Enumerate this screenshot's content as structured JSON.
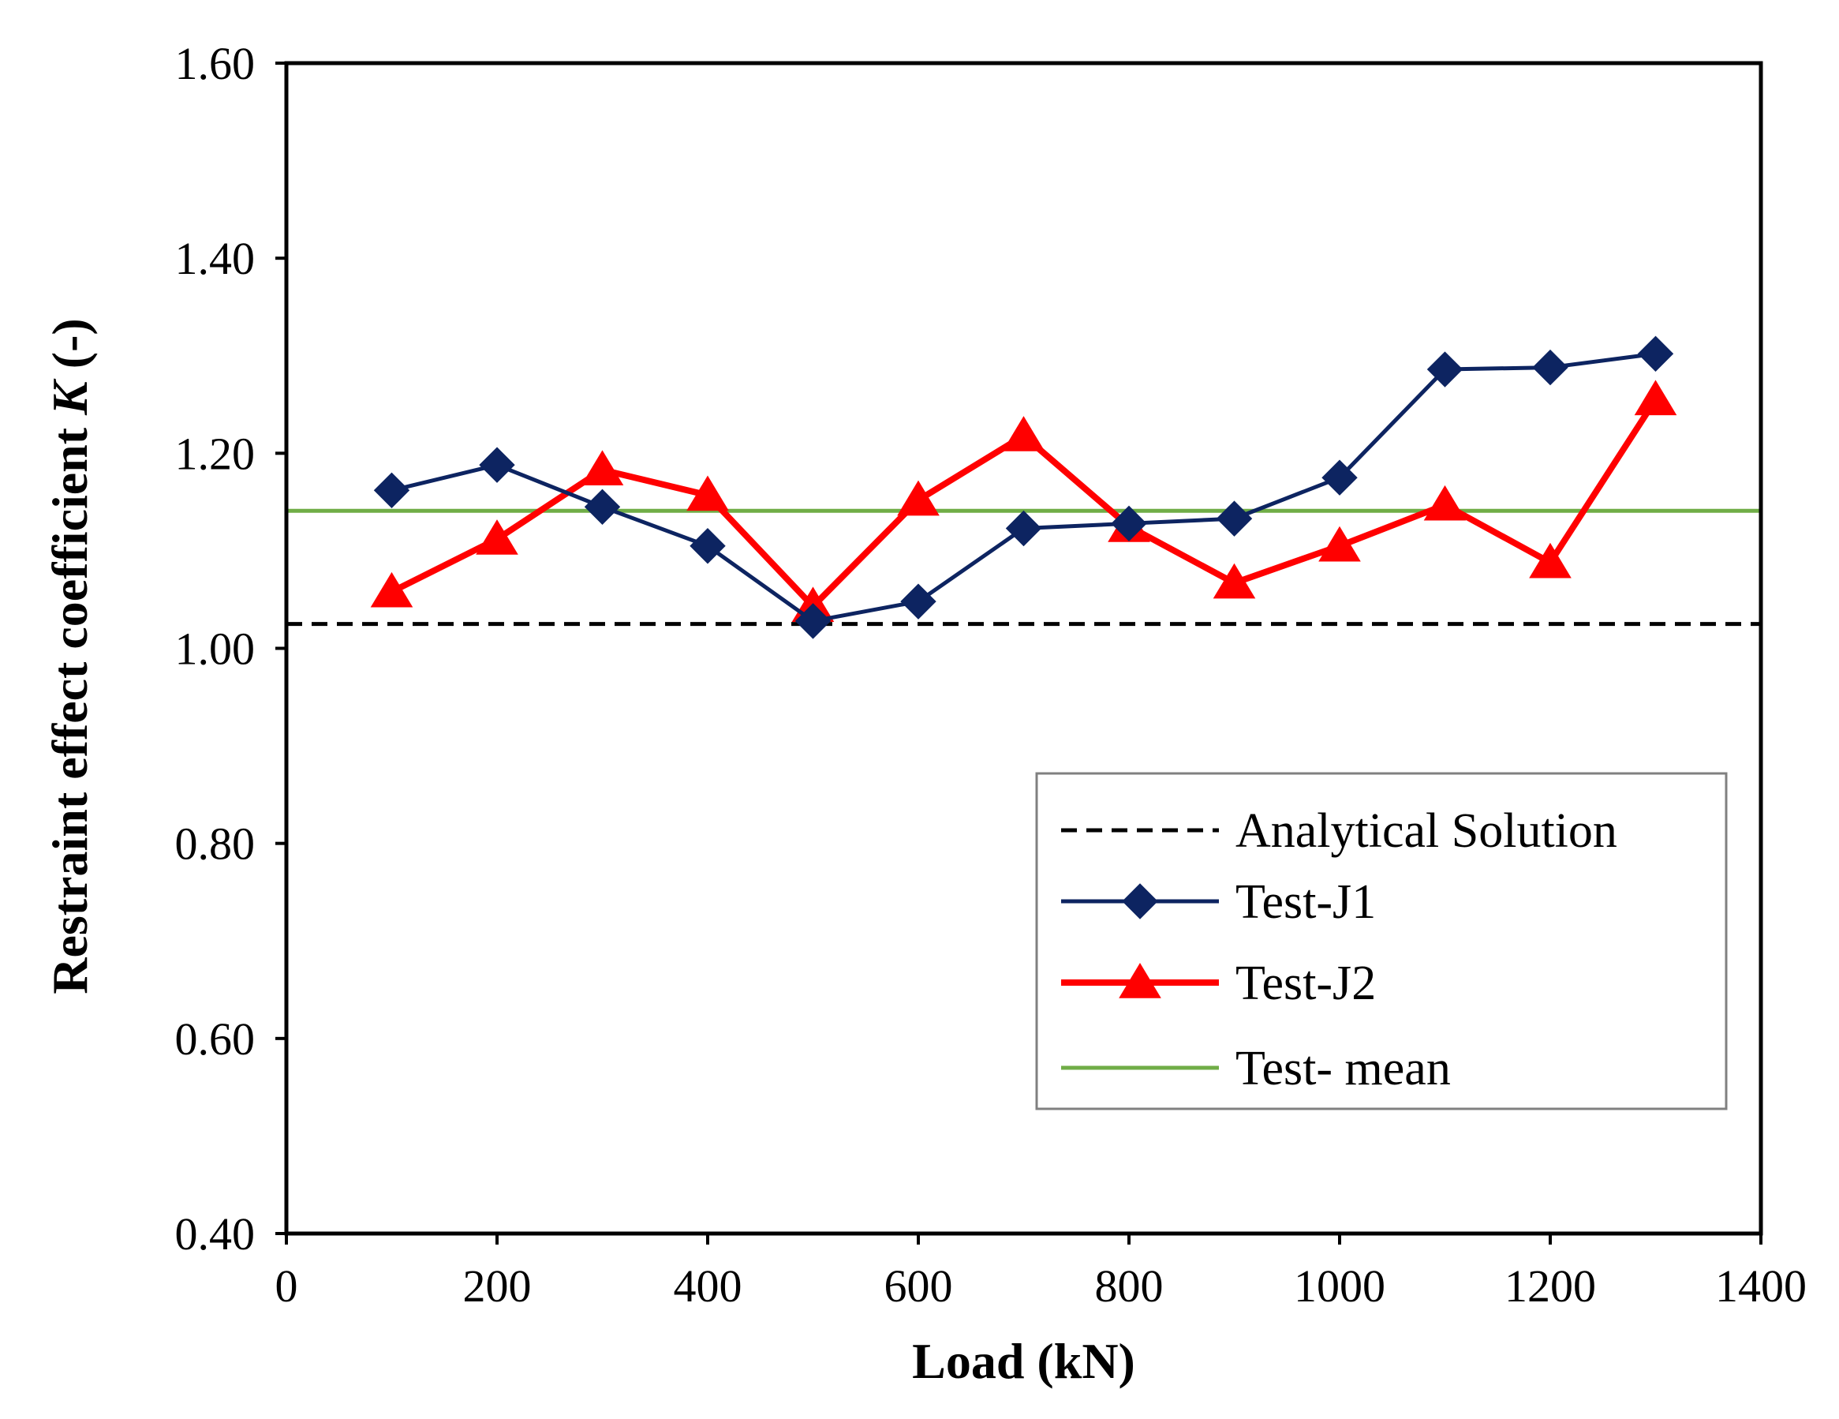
{
  "chart_data": {
    "type": "line",
    "title": "",
    "xlabel": "Load (kN)",
    "ylabel_prefix": "Restraint effect coefficient ",
    "ylabel_var": "K",
    "ylabel_suffix": " (-)",
    "xlim": [
      0,
      1400
    ],
    "ylim": [
      0.4,
      1.6
    ],
    "x_ticks": [
      0,
      200,
      400,
      600,
      800,
      1000,
      1200,
      1400
    ],
    "x_tick_labels": [
      "0",
      "200",
      "400",
      "600",
      "800",
      "1000",
      "1200",
      "1400"
    ],
    "y_ticks": [
      0.4,
      0.6,
      0.8,
      1.0,
      1.2,
      1.4,
      1.6
    ],
    "y_tick_labels": [
      "0.40",
      "0.60",
      "0.80",
      "1.00",
      "1.20",
      "1.40",
      "1.60"
    ],
    "grid": false,
    "legend_position": "lower-right",
    "x": [
      100,
      200,
      300,
      400,
      500,
      600,
      700,
      800,
      900,
      1000,
      1100,
      1200,
      1300
    ],
    "series": [
      {
        "name": "Analytical Solution",
        "style": "dashed",
        "marker": "none",
        "color": "#000000",
        "constant": 1.025
      },
      {
        "name": "Test-J1",
        "style": "solid",
        "marker": "diamond",
        "color": "#0d2461",
        "values": [
          1.162,
          1.188,
          1.145,
          1.105,
          1.028,
          1.048,
          1.123,
          1.128,
          1.133,
          1.175,
          1.286,
          1.288,
          1.302
        ]
      },
      {
        "name": "Test-J2",
        "style": "solid",
        "marker": "triangle",
        "color": "#ff0000",
        "values": [
          1.058,
          1.112,
          1.183,
          1.157,
          1.043,
          1.152,
          1.218,
          1.125,
          1.067,
          1.105,
          1.147,
          1.088,
          1.255
        ]
      },
      {
        "name": "Test- mean",
        "style": "solid",
        "marker": "none",
        "color": "#70ad47",
        "constant": 1.141
      }
    ]
  }
}
